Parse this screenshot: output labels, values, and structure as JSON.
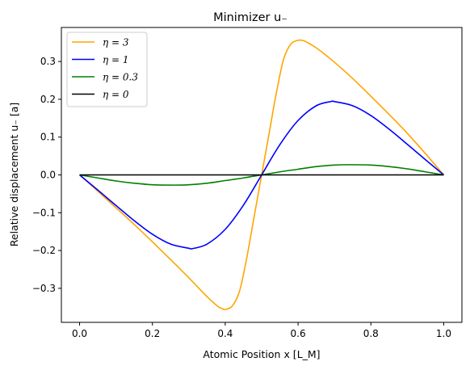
{
  "chart_data": {
    "type": "line",
    "title": "Minimizer u₋",
    "xlabel": "Atomic Position x [L_M]",
    "ylabel": "Relative displacement u₋ [a]",
    "xlim": [
      -0.05,
      1.05
    ],
    "ylim": [
      -0.39,
      0.39
    ],
    "xticks": [
      0.0,
      0.2,
      0.4,
      0.6,
      0.8,
      1.0
    ],
    "xtick_labels": [
      "0.0",
      "0.2",
      "0.4",
      "0.6",
      "0.8",
      "1.0"
    ],
    "yticks": [
      -0.3,
      -0.2,
      -0.1,
      0.0,
      0.1,
      0.2,
      0.3
    ],
    "ytick_labels": [
      "−0.3",
      "−0.2",
      "−0.1",
      "0.0",
      "0.1",
      "0.2",
      "0.3"
    ],
    "grid": false,
    "legend_position": "top-left",
    "series": [
      {
        "name": "η = 3",
        "color": "#ffa500",
        "x": [
          0.0,
          0.05,
          0.1,
          0.15,
          0.2,
          0.25,
          0.3,
          0.35,
          0.38,
          0.39,
          0.4,
          0.42,
          0.44,
          0.46,
          0.48,
          0.5,
          0.52,
          0.54,
          0.56,
          0.58,
          0.6,
          0.61,
          0.62,
          0.65,
          0.7,
          0.75,
          0.8,
          0.85,
          0.9,
          0.95,
          1.0
        ],
        "y": [
          0.0,
          -0.043,
          -0.087,
          -0.131,
          -0.177,
          -0.224,
          -0.272,
          -0.322,
          -0.348,
          -0.353,
          -0.356,
          -0.346,
          -0.305,
          -0.215,
          -0.107,
          0.0,
          0.107,
          0.215,
          0.305,
          0.346,
          0.356,
          0.356,
          0.353,
          0.336,
          0.298,
          0.255,
          0.208,
          0.16,
          0.11,
          0.056,
          0.0
        ]
      },
      {
        "name": "η = 1",
        "color": "#0000ff",
        "x": [
          0.0,
          0.05,
          0.1,
          0.15,
          0.2,
          0.25,
          0.3,
          0.31,
          0.35,
          0.4,
          0.45,
          0.5,
          0.55,
          0.6,
          0.65,
          0.69,
          0.7,
          0.75,
          0.8,
          0.85,
          0.9,
          0.95,
          1.0
        ],
        "y": [
          0.0,
          -0.04,
          -0.081,
          -0.121,
          -0.157,
          -0.183,
          -0.194,
          -0.195,
          -0.183,
          -0.144,
          -0.08,
          0.0,
          0.08,
          0.144,
          0.183,
          0.194,
          0.194,
          0.183,
          0.157,
          0.121,
          0.081,
          0.04,
          0.0
        ]
      },
      {
        "name": "η = 0.3",
        "color": "#008000",
        "x": [
          0.0,
          0.05,
          0.1,
          0.15,
          0.2,
          0.26,
          0.3,
          0.35,
          0.4,
          0.45,
          0.5,
          0.55,
          0.6,
          0.65,
          0.7,
          0.74,
          0.8,
          0.85,
          0.9,
          0.95,
          1.0
        ],
        "y": [
          0.0,
          -0.008,
          -0.016,
          -0.022,
          -0.026,
          -0.027,
          -0.026,
          -0.022,
          -0.015,
          -0.008,
          0.0,
          0.008,
          0.015,
          0.022,
          0.026,
          0.027,
          0.026,
          0.022,
          0.016,
          0.008,
          0.0
        ]
      },
      {
        "name": "η = 0",
        "color": "#000000",
        "x": [
          0.0,
          1.0
        ],
        "y": [
          0.0,
          0.0
        ]
      }
    ]
  }
}
